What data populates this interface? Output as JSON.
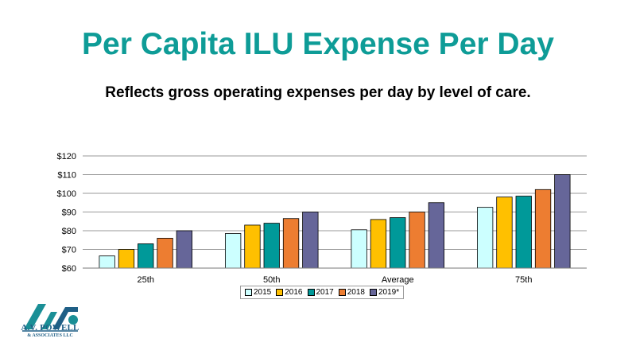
{
  "slide": {
    "title": "Per Capita ILU Expense Per Day",
    "subtitle": "Reflects gross operating expenses per day by level of care."
  },
  "logo": {
    "name_line": "A.V. POWELL",
    "tag_line": "& ASSOCIATES LLC",
    "monogram": "AVP"
  },
  "chart_data": {
    "type": "bar",
    "categories": [
      "25th",
      "50th",
      "Average",
      "75th"
    ],
    "series": [
      {
        "name": "2015",
        "color": "#ccffff",
        "values": [
          66.5,
          78.5,
          80.5,
          92.5
        ]
      },
      {
        "name": "2016",
        "color": "#ffc000",
        "values": [
          70,
          83,
          86,
          98
        ]
      },
      {
        "name": "2017",
        "color": "#009999",
        "values": [
          73,
          84,
          87,
          98.5
        ]
      },
      {
        "name": "2018",
        "color": "#ed7d31",
        "values": [
          76,
          86.5,
          90,
          102
        ]
      },
      {
        "name": "2019*",
        "color": "#666699",
        "values": [
          80,
          90,
          95,
          110
        ]
      }
    ],
    "ylim": [
      60,
      120
    ],
    "yticks": [
      60,
      70,
      80,
      90,
      100,
      110,
      120
    ],
    "ytick_labels": [
      "$60",
      "$70",
      "$80",
      "$90",
      "$100",
      "$110",
      "$120"
    ],
    "grid": true,
    "legend": "bottom"
  }
}
